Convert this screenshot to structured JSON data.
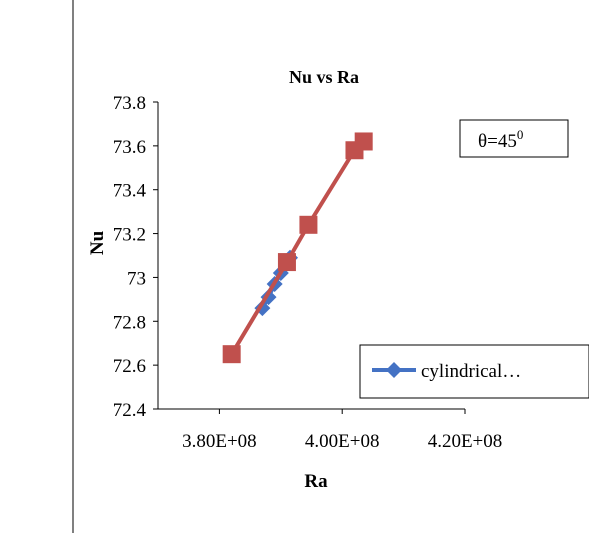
{
  "chart_data": {
    "type": "line",
    "title": "Nu vs Ra",
    "xlabel": "Ra",
    "ylabel": "Nu",
    "xlim": [
      370000000,
      420000000
    ],
    "ylim": [
      72.4,
      73.8
    ],
    "xticks": [
      {
        "value": 380000000,
        "label": "3.80E+08"
      },
      {
        "value": 400000000,
        "label": "4.00E+08"
      },
      {
        "value": 420000000,
        "label": "4.20E+08"
      }
    ],
    "yticks": [
      {
        "value": 72.4,
        "label": "72.4"
      },
      {
        "value": 72.6,
        "label": "72.6"
      },
      {
        "value": 72.8,
        "label": "72.8"
      },
      {
        "value": 73.0,
        "label": "73"
      },
      {
        "value": 73.2,
        "label": "73.2"
      },
      {
        "value": 73.4,
        "label": "73.4"
      },
      {
        "value": 73.6,
        "label": "73.6"
      },
      {
        "value": 73.8,
        "label": "73.8"
      }
    ],
    "grid": false,
    "legend_position": "right",
    "annotation": {
      "text": "θ=45",
      "superscript": "0"
    },
    "series": [
      {
        "name": "cylindrical…",
        "marker": "diamond",
        "color": "#4472C4",
        "x": [
          387000000,
          388000000,
          389000000,
          390000000,
          391500000
        ],
        "y": [
          72.86,
          72.91,
          72.97,
          73.02,
          73.09
        ]
      },
      {
        "name": "",
        "marker": "square",
        "color": "#C0504D",
        "x": [
          382000000,
          391000000,
          394500000,
          402000000,
          403500000
        ],
        "y": [
          72.65,
          73.07,
          73.24,
          73.58,
          73.62
        ]
      }
    ]
  }
}
